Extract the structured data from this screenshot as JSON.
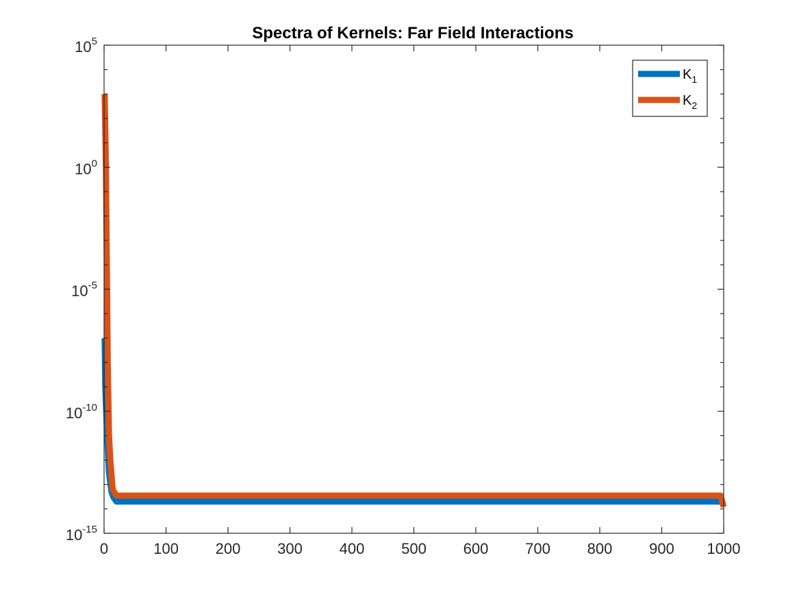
{
  "chart_data": {
    "type": "line",
    "title": "Spectra of Kernels: Far Field Interactions",
    "xlabel": "",
    "ylabel": "",
    "xlim": [
      0,
      1000
    ],
    "ylim": [
      1e-15,
      100000
    ],
    "yscale": "log",
    "grid": false,
    "legend_position": "top-right",
    "x_ticks": [
      0,
      100,
      200,
      300,
      400,
      500,
      600,
      700,
      800,
      900,
      1000
    ],
    "y_ticks": [
      {
        "base": "10",
        "exp": "5",
        "value": 100000
      },
      {
        "base": "10",
        "exp": "0",
        "value": 1
      },
      {
        "base": "10",
        "exp": "-5",
        "value": 1e-05
      },
      {
        "base": "10",
        "exp": "-10",
        "value": 1e-10
      },
      {
        "base": "10",
        "exp": "-15",
        "value": 1e-15
      }
    ],
    "series": [
      {
        "name": "K",
        "subscript": "1",
        "color": "#0072bd",
        "points": [
          [
            1,
            1e-07
          ],
          [
            2,
            1e-09
          ],
          [
            5,
            1e-11
          ],
          [
            8,
            3e-13
          ],
          [
            12,
            5e-14
          ],
          [
            15,
            3e-14
          ],
          [
            20,
            2e-14
          ],
          [
            100,
            2e-14
          ],
          [
            500,
            2e-14
          ],
          [
            995,
            2e-14
          ],
          [
            1000,
            1.5e-14
          ]
        ]
      },
      {
        "name": "K",
        "subscript": "2",
        "color": "#d95319",
        "points": [
          [
            1,
            1000
          ],
          [
            3,
            1
          ],
          [
            6,
            1e-08
          ],
          [
            8,
            1e-11
          ],
          [
            10,
            1e-12
          ],
          [
            14,
            6e-14
          ],
          [
            20,
            3.5e-14
          ],
          [
            100,
            3.5e-14
          ],
          [
            500,
            3.5e-14
          ],
          [
            995,
            3.5e-14
          ],
          [
            1000,
            1.2e-14
          ]
        ]
      }
    ]
  }
}
